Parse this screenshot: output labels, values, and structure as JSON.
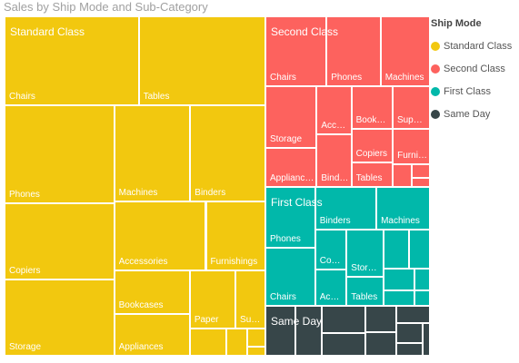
{
  "chart_data": {
    "type": "treemap",
    "title": "Sales by Ship Mode and Sub-Category",
    "legend_title": "Ship Mode",
    "legend_position": "right",
    "series": [
      {
        "name": "Standard Class",
        "color": "#f2c80f",
        "categories": [
          "Chairs",
          "Tables",
          "Phones",
          "Copiers",
          "Storage",
          "Machines",
          "Binders",
          "Accessories",
          "Furnishings",
          "Bookcases",
          "Appliances",
          "Paper",
          "Supplies",
          null,
          null,
          null,
          null
        ],
        "values": [
          14.5,
          13.7,
          13.0,
          10.1,
          10.1,
          8.8,
          8.7,
          7.7,
          5.0,
          4.0,
          3.8,
          3.2,
          2.1,
          1.2,
          0.7,
          0.4,
          0.2
        ]
      },
      {
        "name": "Second Class",
        "color": "#fd625e",
        "categories": [
          "Chairs",
          "Phones",
          "Machines",
          "Storage",
          "Appliances",
          "Accessories",
          "Binders",
          "Bookcases",
          "Supplies",
          "Copiers",
          "Tables",
          "Furnishings",
          null,
          null,
          null
        ],
        "values": [
          5.2,
          4.6,
          4.2,
          3.8,
          2.4,
          2.0,
          2.2,
          2.1,
          1.9,
          1.7,
          1.2,
          1.6,
          0.5,
          0.3,
          0.2
        ]
      },
      {
        "name": "First Class",
        "color": "#01b8aa",
        "categories": [
          "Phones",
          "Chairs",
          "Binders",
          "Machines",
          "Copiers",
          "Accessories",
          "Storage",
          "Tables",
          null,
          null,
          null,
          null,
          null,
          null
        ],
        "values": [
          3.7,
          3.5,
          3.2,
          2.8,
          1.5,
          1.4,
          2.1,
          1.3,
          1.2,
          1.0,
          0.8,
          0.6,
          0.4,
          0.3
        ]
      },
      {
        "name": "Same Day",
        "color": "#374649",
        "categories": [
          null,
          null,
          null,
          null,
          null,
          null,
          null,
          null,
          null,
          null
        ],
        "values": [
          1.8,
          1.6,
          1.4,
          1.2,
          1.0,
          0.9,
          0.7,
          0.6,
          0.4,
          0.3
        ]
      }
    ]
  }
}
